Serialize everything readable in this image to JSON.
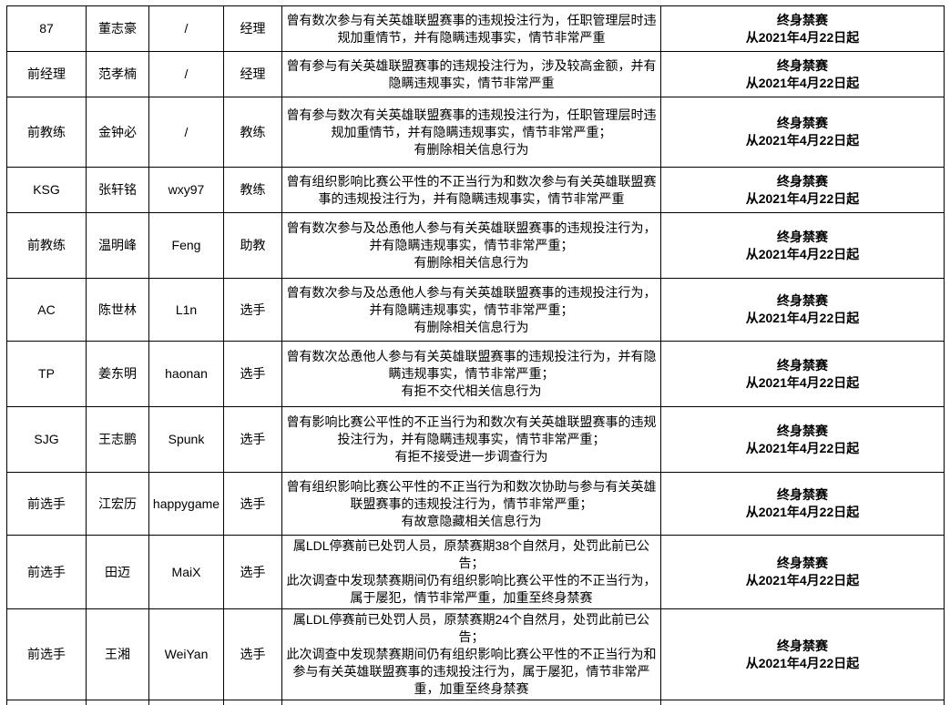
{
  "page": {
    "background_color": "#ffffff",
    "text_color": "#000000",
    "border_color": "#000000"
  },
  "table": {
    "rows": [
      {
        "team": "87",
        "player_name": "董志豪",
        "game_id": "/",
        "role": "经理",
        "description": [
          "曾有数次参与有关英雄联盟赛事的违规投注行为，任职管理层时违规加重情节，并有隐瞒违规事实，情节非常严重"
        ],
        "punishment": [
          "终身禁赛",
          "从2021年4月22日起"
        ]
      },
      {
        "team": "前经理",
        "player_name": "范孝楠",
        "game_id": "/",
        "role": "经理",
        "description": [
          "曾有参与有关英雄联盟赛事的违规投注行为，涉及较高金额，并有隐瞒违规事实，情节非常严重"
        ],
        "punishment": [
          "终身禁赛",
          "从2021年4月22日起"
        ]
      },
      {
        "team": "前教练",
        "player_name": "金钟必",
        "game_id": "/",
        "role": "教练",
        "description": [
          "曾有参与数次有关英雄联盟赛事的违规投注行为，任职管理层时违规加重情节，并有隐瞒违规事实，情节非常严重；",
          "有删除相关信息行为"
        ],
        "punishment": [
          "终身禁赛",
          "从2021年4月22日起"
        ]
      },
      {
        "team": "KSG",
        "player_name": "张轩铭",
        "game_id": "wxy97",
        "role": "教练",
        "description": [
          "曾有组织影响比赛公平性的不正当行为和数次参与有关英雄联盟赛事的违规投注行为，并有隐瞒违规事实，情节非常严重"
        ],
        "punishment": [
          "终身禁赛",
          "从2021年4月22日起"
        ]
      },
      {
        "team": "前教练",
        "player_name": "温明峰",
        "game_id": "Feng",
        "role": "助教",
        "description": [
          "曾有数次参与及怂恿他人参与有关英雄联盟赛事的违规投注行为，并有隐瞒违规事实，情节非常严重；",
          "有删除相关信息行为"
        ],
        "punishment": [
          "终身禁赛",
          "从2021年4月22日起"
        ]
      },
      {
        "team": "AC",
        "player_name": "陈世林",
        "game_id": "L1n",
        "role": "选手",
        "description": [
          "曾有数次参与及怂恿他人参与有关英雄联盟赛事的违规投注行为，并有隐瞒违规事实，情节非常严重；",
          "有删除相关信息行为"
        ],
        "punishment": [
          "终身禁赛",
          "从2021年4月22日起"
        ]
      },
      {
        "team": "TP",
        "player_name": "姜东明",
        "game_id": "haonan",
        "role": "选手",
        "description": [
          "曾有数次怂恿他人参与有关英雄联盟赛事的违规投注行为，并有隐瞒违规事实，情节非常严重；",
          "有拒不交代相关信息行为"
        ],
        "punishment": [
          "终身禁赛",
          "从2021年4月22日起"
        ]
      },
      {
        "team": "SJG",
        "player_name": "王志鹏",
        "game_id": "Spunk",
        "role": "选手",
        "description": [
          "曾有影响比赛公平性的不正当行为和数次有关英雄联盟赛事的违规投注行为，并有隐瞒违规事实，情节非常严重；",
          "有拒不接受进一步调查行为"
        ],
        "punishment": [
          "终身禁赛",
          "从2021年4月22日起"
        ]
      },
      {
        "team": "前选手",
        "player_name": "江宏历",
        "game_id": "happygame",
        "role": "选手",
        "description": [
          "曾有组织影响比赛公平性的不正当行为和数次协助与参与有关英雄联盟赛事的违规投注行为，情节非常严重；",
          "有故意隐藏相关信息行为"
        ],
        "punishment": [
          "终身禁赛",
          "从2021年4月22日起"
        ]
      },
      {
        "team": "前选手",
        "player_name": "田迈",
        "game_id": "MaiX",
        "role": "选手",
        "description": [
          "属LDL停赛前已处罚人员，原禁赛期38个自然月，处罚此前已公告；",
          "此次调查中发现禁赛期间仍有组织影响比赛公平性的不正当行为，属于屡犯，情节非常严重，加重至终身禁赛"
        ],
        "punishment": [
          "终身禁赛",
          "从2021年4月22日起"
        ]
      },
      {
        "team": "前选手",
        "player_name": "王湘",
        "game_id": "WeiYan",
        "role": "选手",
        "description": [
          "属LDL停赛前已处罚人员，原禁赛期24个自然月，处罚此前已公告；",
          "此次调查中发现禁赛期间仍有组织影响比赛公平性的不正当行为和参与有关英雄联盟赛事的违规投注行为，属于屡犯，情节非常严重，加重至终身禁赛"
        ],
        "punishment": [
          "终身禁赛",
          "从2021年4月22日起"
        ]
      }
    ]
  }
}
